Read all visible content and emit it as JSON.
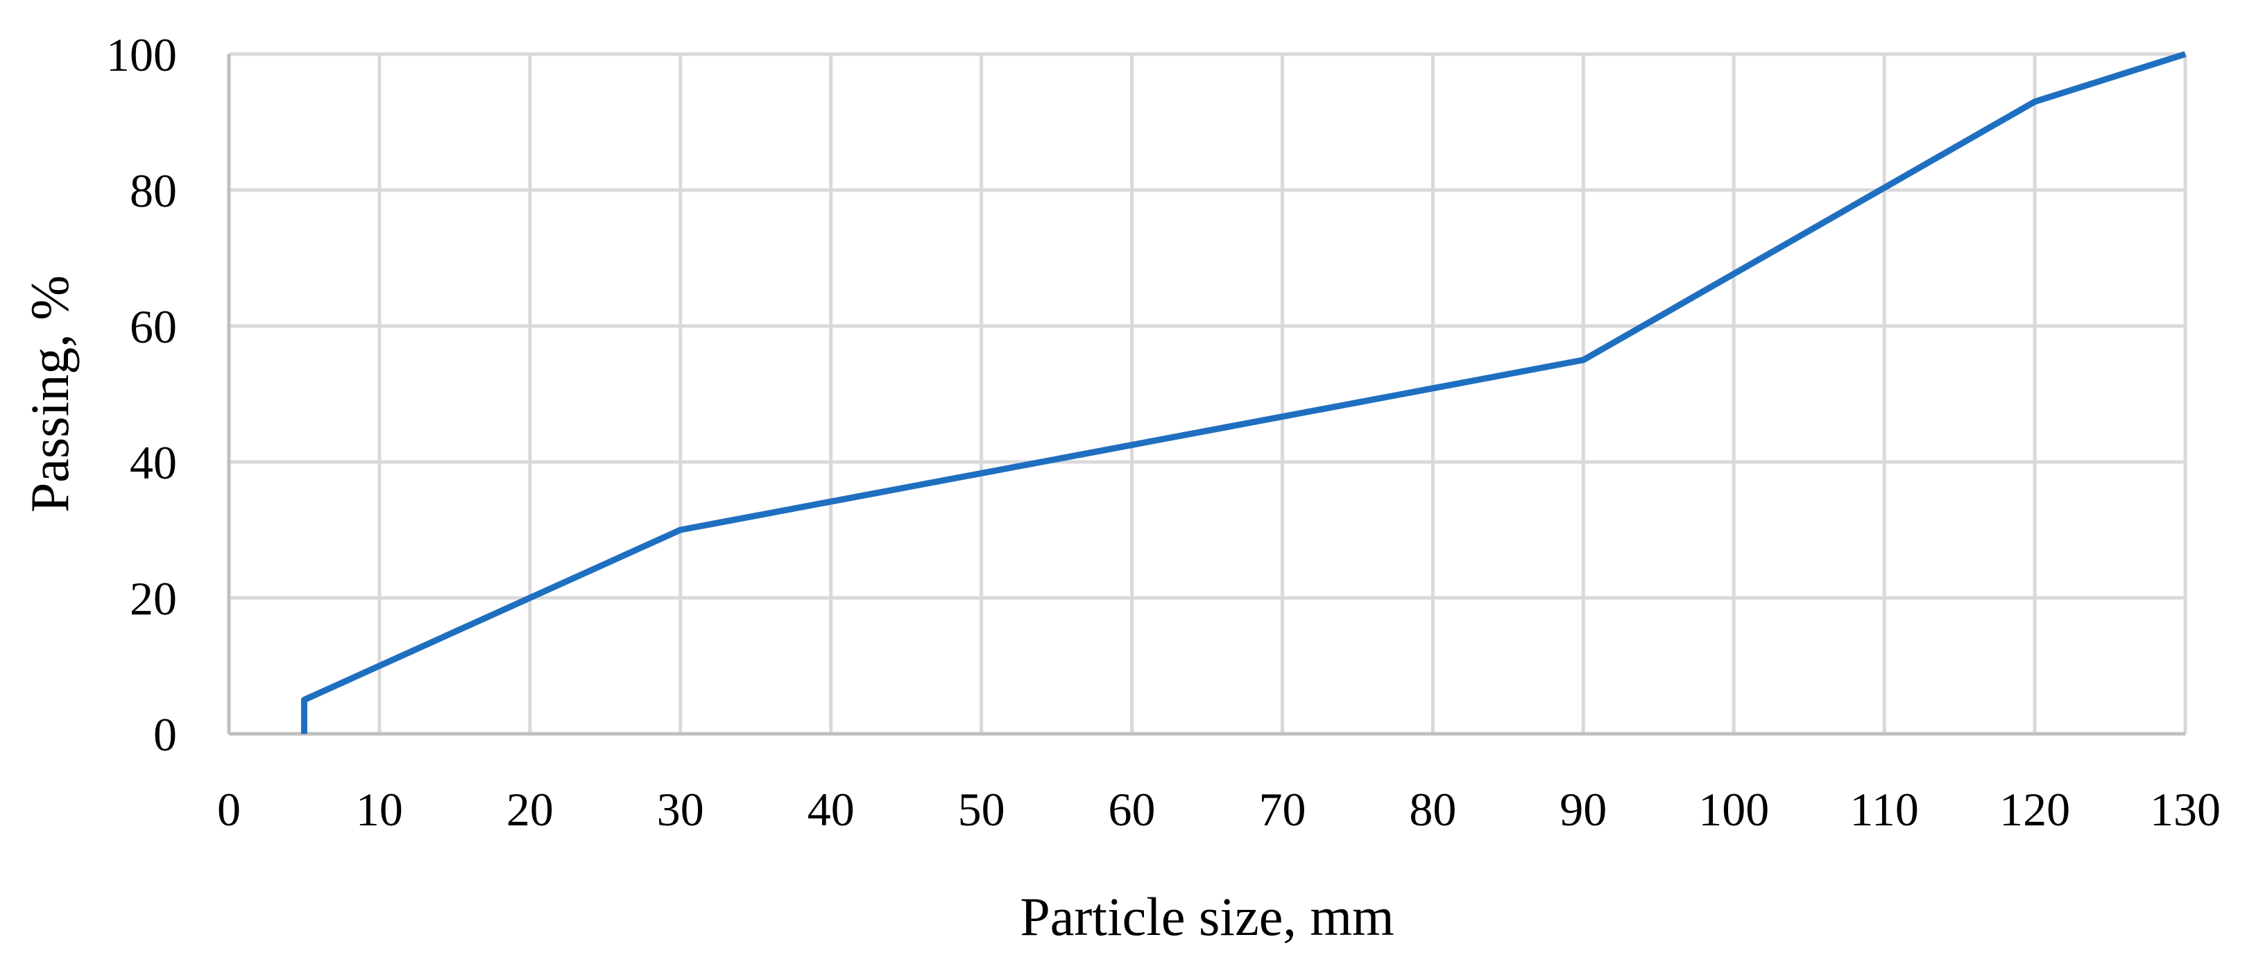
{
  "chart_data": {
    "type": "line",
    "title": "",
    "xlabel": "Particle size, mm",
    "ylabel": "Passing, %",
    "xlim": [
      0,
      130
    ],
    "ylim": [
      0,
      100
    ],
    "x_ticks": [
      "0",
      "10",
      "20",
      "30",
      "40",
      "50",
      "60",
      "70",
      "80",
      "90",
      "100",
      "110",
      "120",
      "130"
    ],
    "y_ticks": [
      "0",
      "20",
      "40",
      "60",
      "80",
      "100"
    ],
    "grid": true,
    "legend": "none",
    "series": [
      {
        "color": "#1F6FC0",
        "points": [
          {
            "x": 5,
            "y": 0
          },
          {
            "x": 5,
            "y": 5
          },
          {
            "x": 30,
            "y": 30
          },
          {
            "x": 90,
            "y": 55
          },
          {
            "x": 120,
            "y": 93
          },
          {
            "x": 130,
            "y": 100
          }
        ]
      }
    ]
  }
}
